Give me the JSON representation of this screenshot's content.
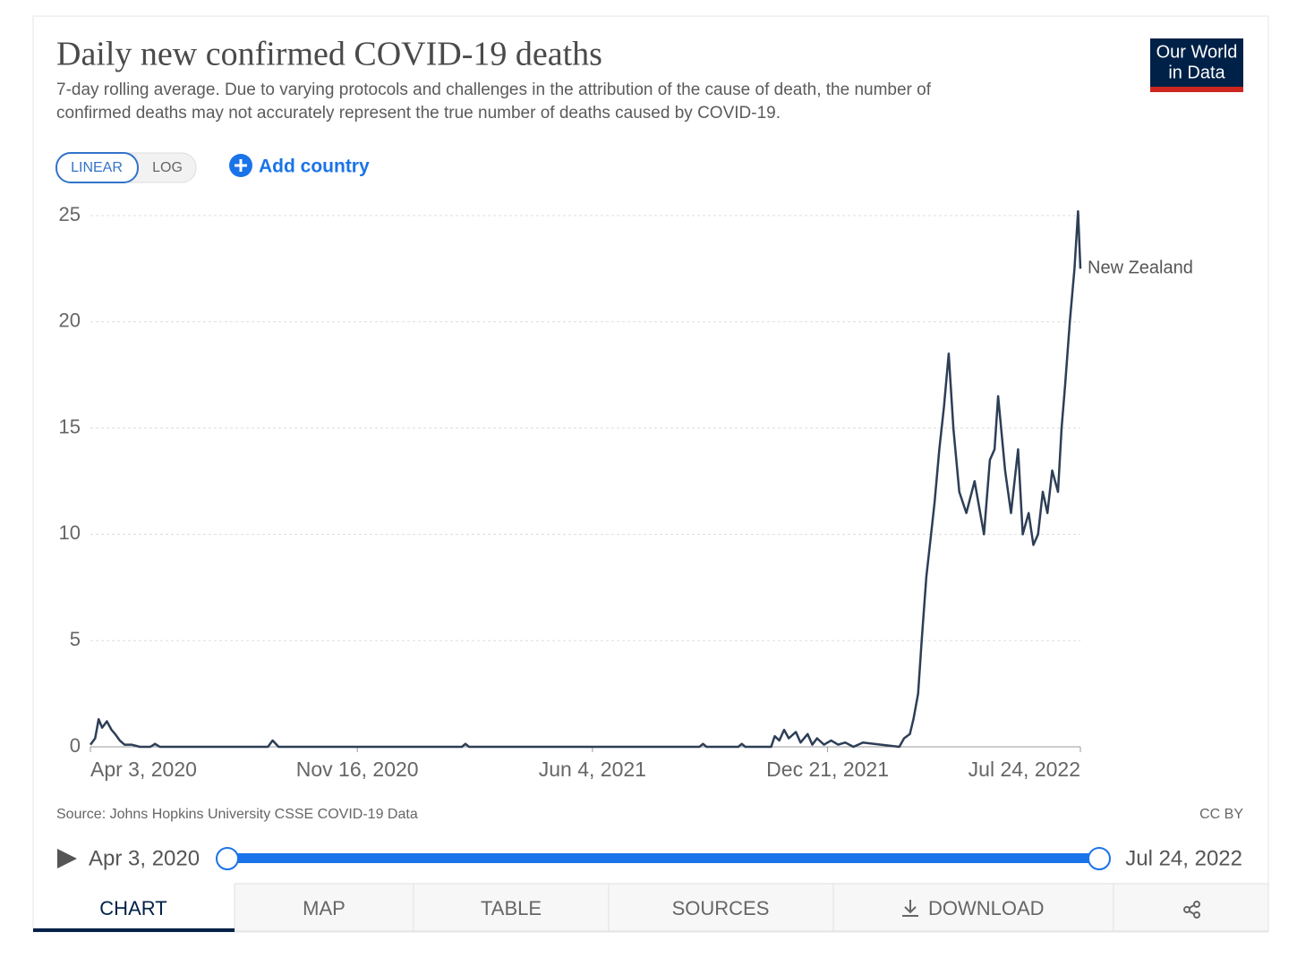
{
  "chart_data": {
    "type": "line",
    "title": "Daily new confirmed COVID-19 deaths",
    "subtitle": [
      "7-day rolling average. Due to varying protocols and challenges in the attribution of the cause of death, the number of",
      "confirmed deaths may not accurately represent the true number of deaths caused by COVID-19."
    ],
    "x": [
      "2020-04-03",
      "2020-04-07",
      "2020-04-10",
      "2020-04-13",
      "2020-04-17",
      "2020-04-21",
      "2020-04-24",
      "2020-04-28",
      "2020-05-02",
      "2020-05-08",
      "2020-05-15",
      "2020-05-24",
      "2020-05-28",
      "2020-06-01",
      "2020-09-01",
      "2020-09-05",
      "2020-09-10",
      "2021-02-13",
      "2021-02-16",
      "2021-02-19",
      "2021-09-03",
      "2021-09-06",
      "2021-09-09",
      "2021-10-06",
      "2021-10-09",
      "2021-10-12",
      "2021-11-03",
      "2021-11-06",
      "2021-11-10",
      "2021-11-14",
      "2021-11-18",
      "2021-11-24",
      "2021-11-28",
      "2021-12-04",
      "2021-12-08",
      "2021-12-12",
      "2021-12-18",
      "2021-12-24",
      "2021-12-30",
      "2022-01-05",
      "2022-01-12",
      "2022-01-20",
      "2022-02-20",
      "2022-02-24",
      "2022-03-01",
      "2022-03-04",
      "2022-03-08",
      "2022-03-11",
      "2022-03-15",
      "2022-03-19",
      "2022-03-22",
      "2022-03-26",
      "2022-03-30",
      "2022-04-03",
      "2022-04-07",
      "2022-04-12",
      "2022-04-18",
      "2022-04-25",
      "2022-05-03",
      "2022-05-08",
      "2022-05-12",
      "2022-05-15",
      "2022-05-21",
      "2022-05-26",
      "2022-06-01",
      "2022-06-05",
      "2022-06-10",
      "2022-06-14",
      "2022-06-18",
      "2022-06-22",
      "2022-06-26",
      "2022-06-30",
      "2022-07-05",
      "2022-07-08",
      "2022-07-11",
      "2022-07-15",
      "2022-07-19",
      "2022-07-22",
      "2022-07-24"
    ],
    "series": [
      {
        "name": "New Zealand",
        "color": "#2d3e56",
        "values": [
          0.1,
          0.4,
          1.3,
          0.9,
          1.2,
          0.8,
          0.6,
          0.3,
          0.1,
          0.1,
          0,
          0,
          0.14,
          0,
          0,
          0.3,
          0,
          0,
          0.14,
          0,
          0,
          0.14,
          0,
          0,
          0.14,
          0,
          0,
          0.5,
          0.3,
          0.8,
          0.4,
          0.7,
          0.2,
          0.6,
          0.1,
          0.4,
          0.1,
          0.3,
          0.1,
          0.2,
          0,
          0.2,
          0,
          0.4,
          0.6,
          1.3,
          2.5,
          5,
          8,
          10,
          11.5,
          14,
          16,
          18.5,
          15,
          12,
          11,
          12.5,
          10,
          13.5,
          14,
          16.5,
          13,
          11,
          14,
          10,
          11,
          9.5,
          10,
          12,
          11,
          13,
          12,
          15,
          17,
          20,
          22.5,
          25.2,
          22.5
        ]
      }
    ],
    "xlim": [
      "2020-04-03",
      "2022-07-24"
    ],
    "xticks": [
      {
        "value": "2020-04-03",
        "label": "Apr 3, 2020"
      },
      {
        "value": "2020-11-16",
        "label": "Nov 16, 2020"
      },
      {
        "value": "2021-06-04",
        "label": "Jun 4, 2021"
      },
      {
        "value": "2021-12-21",
        "label": "Dec 21, 2021"
      },
      {
        "value": "2022-07-24",
        "label": "Jul 24, 2022"
      }
    ],
    "ylim": [
      0,
      25
    ],
    "yticks": [
      0,
      5,
      10,
      15,
      20,
      25
    ],
    "grid": true
  },
  "logo": [
    "Our World",
    "in Data"
  ],
  "controls": {
    "scales": [
      "LINEAR",
      "LOG"
    ],
    "add": "Add country"
  },
  "source": "Source: Johns Hopkins University CSSE COVID-19 Data",
  "license": "CC BY",
  "timeline": {
    "start": "Apr 3, 2020",
    "end": "Jul 24, 2022"
  },
  "tabs": [
    "CHART",
    "MAP",
    "TABLE",
    "SOURCES",
    "DOWNLOAD"
  ]
}
